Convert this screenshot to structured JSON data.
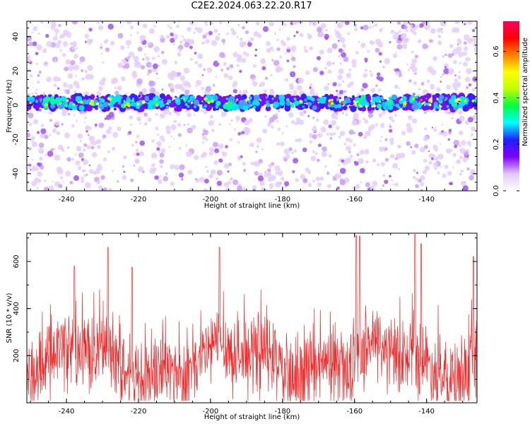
{
  "title": "C2E2.2024.063.22.20.R17",
  "chart_data": [
    {
      "type": "heatmap",
      "xlabel": "Height of straight line (km)",
      "ylabel": "Frequency (Hz)",
      "xlim": [
        -251,
        -126
      ],
      "ylim": [
        -50,
        49
      ],
      "x_ticks": [
        "-240",
        "-220",
        "-200",
        "-180",
        "-160",
        "-140"
      ],
      "y_ticks": [
        "40",
        "20",
        "0",
        "-20",
        "-40"
      ],
      "band": {
        "center_hz": 1.5,
        "half_width_hz": 4
      },
      "colorbar": {
        "label": "Normalized spectral amplitude",
        "range": [
          0,
          0.73
        ],
        "ticks": [
          "0.0",
          "0.2",
          "0.4",
          "0.6"
        ],
        "colors": [
          "#ffffff",
          "#e0c8f8",
          "#8000ff",
          "#2020ff",
          "#00ffff",
          "#00ff40",
          "#c0ff00",
          "#ffff00",
          "#ff8000",
          "#ff0000",
          "#ff0060"
        ]
      }
    },
    {
      "type": "line",
      "xlabel": "Height of straight line (km)",
      "ylabel": "SNR (10 * v/v)",
      "xlim": [
        -251,
        -126
      ],
      "ylim": [
        0,
        720
      ],
      "x_ticks": [
        "-240",
        "-220",
        "-200",
        "-180",
        "-160",
        "-140"
      ],
      "y_ticks": [
        "600",
        "400",
        "200"
      ],
      "color": "#f02828",
      "peaks": [
        {
          "x": -228.5,
          "y": 660
        },
        {
          "x": -221.8,
          "y": 575
        },
        {
          "x": -197.5,
          "y": 660
        },
        {
          "x": -159.5,
          "y": 710
        },
        {
          "x": -158.6,
          "y": 708
        },
        {
          "x": -143.2,
          "y": 715
        },
        {
          "x": -141.5,
          "y": 675
        },
        {
          "x": -127,
          "y": 620
        },
        {
          "x": -237.8,
          "y": 580
        }
      ]
    }
  ]
}
